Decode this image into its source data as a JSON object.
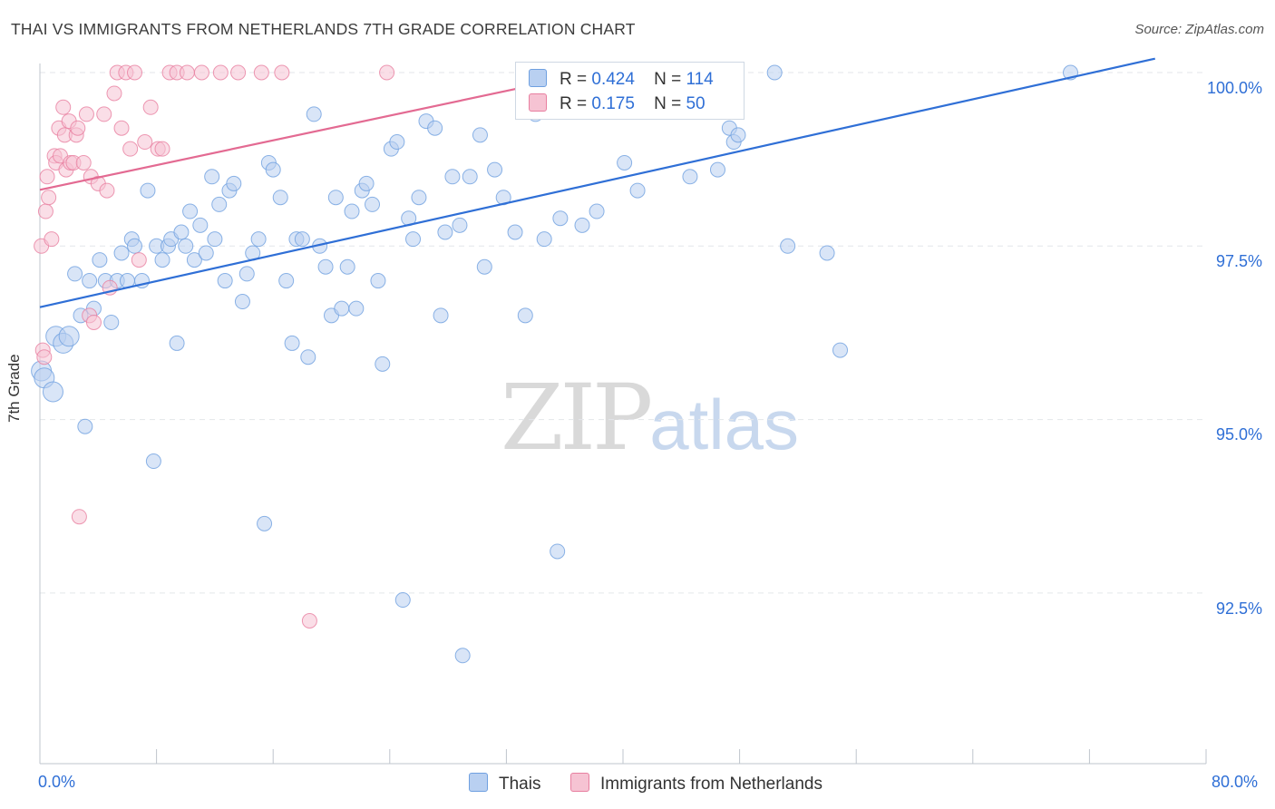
{
  "title": "THAI VS IMMIGRANTS FROM NETHERLANDS 7TH GRADE CORRELATION CHART",
  "source": "Source: ZipAtlas.com",
  "watermark": {
    "zip": "ZIP",
    "atlas": "atlas"
  },
  "legend_top": [
    {
      "r_label": "R =",
      "r_value": "0.424",
      "n_label": "N =",
      "n_value": "114"
    },
    {
      "r_label": "R =",
      "r_value": "0.175",
      "n_label": "N =",
      "n_value": "50"
    }
  ],
  "colors": {
    "thais": "#6fa0e0",
    "thais_fill": "#b9d0f1",
    "netherlands": "#e87fa0",
    "netherlands_fill": "#f6c3d3",
    "blue_line": "#2f6fd6",
    "pink_line": "#e36a92",
    "grid": "#e3e6ea",
    "axis_text": "#2f6fd6"
  },
  "chart_data": {
    "type": "scatter",
    "title": "THAI VS IMMIGRANTS FROM NETHERLANDS 7TH GRADE CORRELATION CHART",
    "xlabel": "",
    "ylabel": "7th Grade",
    "xlim": [
      0,
      80
    ],
    "ylim": [
      90.0,
      100.4
    ],
    "x_tick_labels": [
      "0.0%",
      "80.0%"
    ],
    "y_tick_labels": [
      "100.0%",
      "97.5%",
      "95.0%",
      "92.5%"
    ],
    "y_ticks": [
      100.0,
      97.5,
      95.0,
      92.5
    ],
    "grid": true,
    "legend_position": "bottom-center",
    "series": [
      {
        "name": "Thais",
        "r": 0.424,
        "n": 114,
        "trend": {
          "x": [
            0,
            76.5
          ],
          "y": [
            96.62,
            100.2
          ]
        },
        "points": [
          [
            0.1,
            95.7
          ],
          [
            0.3,
            95.6
          ],
          [
            0.9,
            95.4
          ],
          [
            1.1,
            96.2
          ],
          [
            1.6,
            96.1
          ],
          [
            2.0,
            96.2
          ],
          [
            2.4,
            97.1
          ],
          [
            2.8,
            96.5
          ],
          [
            3.1,
            94.9
          ],
          [
            3.4,
            97.0
          ],
          [
            3.7,
            96.6
          ],
          [
            4.1,
            97.3
          ],
          [
            4.5,
            97.0
          ],
          [
            4.9,
            96.4
          ],
          [
            5.3,
            97.0
          ],
          [
            5.6,
            97.4
          ],
          [
            6.0,
            97.0
          ],
          [
            6.3,
            97.6
          ],
          [
            6.5,
            97.5
          ],
          [
            7.0,
            97.0
          ],
          [
            7.4,
            98.3
          ],
          [
            7.8,
            94.4
          ],
          [
            8.0,
            97.5
          ],
          [
            8.4,
            97.3
          ],
          [
            8.8,
            97.5
          ],
          [
            9.0,
            97.6
          ],
          [
            9.4,
            96.1
          ],
          [
            9.7,
            97.7
          ],
          [
            10.0,
            97.5
          ],
          [
            10.3,
            98.0
          ],
          [
            10.6,
            97.3
          ],
          [
            11.0,
            97.8
          ],
          [
            11.4,
            97.4
          ],
          [
            11.8,
            98.5
          ],
          [
            12.0,
            97.6
          ],
          [
            12.3,
            98.1
          ],
          [
            12.7,
            97.0
          ],
          [
            13.0,
            98.3
          ],
          [
            13.3,
            98.4
          ],
          [
            13.9,
            96.7
          ],
          [
            14.2,
            97.1
          ],
          [
            14.6,
            97.4
          ],
          [
            15.0,
            97.6
          ],
          [
            15.4,
            93.5
          ],
          [
            15.7,
            98.7
          ],
          [
            16.0,
            98.6
          ],
          [
            16.5,
            98.2
          ],
          [
            16.9,
            97.0
          ],
          [
            17.3,
            96.1
          ],
          [
            17.6,
            97.6
          ],
          [
            18.0,
            97.6
          ],
          [
            18.4,
            95.9
          ],
          [
            18.8,
            99.4
          ],
          [
            19.2,
            97.5
          ],
          [
            19.6,
            97.2
          ],
          [
            20.0,
            96.5
          ],
          [
            20.3,
            98.2
          ],
          [
            20.7,
            96.6
          ],
          [
            21.1,
            97.2
          ],
          [
            21.4,
            98.0
          ],
          [
            21.7,
            96.6
          ],
          [
            22.1,
            98.3
          ],
          [
            22.4,
            98.4
          ],
          [
            22.8,
            98.1
          ],
          [
            23.2,
            97.0
          ],
          [
            23.5,
            95.8
          ],
          [
            24.1,
            98.9
          ],
          [
            24.5,
            99.0
          ],
          [
            24.9,
            92.4
          ],
          [
            25.3,
            97.9
          ],
          [
            25.6,
            97.6
          ],
          [
            26.0,
            98.2
          ],
          [
            26.5,
            99.3
          ],
          [
            27.1,
            99.2
          ],
          [
            27.5,
            96.5
          ],
          [
            27.8,
            97.7
          ],
          [
            28.3,
            98.5
          ],
          [
            28.8,
            97.8
          ],
          [
            29.5,
            98.5
          ],
          [
            29.0,
            91.6
          ],
          [
            30.2,
            99.1
          ],
          [
            30.5,
            97.2
          ],
          [
            31.2,
            98.6
          ],
          [
            31.8,
            98.2
          ],
          [
            32.6,
            97.7
          ],
          [
            33.3,
            96.5
          ],
          [
            34.0,
            99.4
          ],
          [
            34.6,
            97.6
          ],
          [
            35.0,
            100.0
          ],
          [
            35.5,
            93.1
          ],
          [
            35.7,
            97.9
          ],
          [
            36.3,
            99.6
          ],
          [
            37.2,
            97.8
          ],
          [
            37.8,
            99.8
          ],
          [
            38.2,
            98.0
          ],
          [
            38.9,
            99.8
          ],
          [
            39.6,
            100.0
          ],
          [
            40.1,
            98.7
          ],
          [
            41.0,
            98.3
          ],
          [
            41.6,
            100.0
          ],
          [
            42.3,
            100.0
          ],
          [
            44.6,
            98.5
          ],
          [
            46.5,
            98.6
          ],
          [
            47.3,
            99.2
          ],
          [
            47.6,
            99.0
          ],
          [
            47.9,
            99.1
          ],
          [
            50.4,
            100.0
          ],
          [
            51.3,
            97.5
          ],
          [
            54.0,
            97.4
          ],
          [
            54.9,
            96.0
          ],
          [
            70.7,
            100.0
          ]
        ]
      },
      {
        "name": "Immigrants from Netherlands",
        "r": 0.175,
        "n": 50,
        "trend": {
          "x": [
            0,
            33.0
          ],
          "y": [
            98.31,
            99.78
          ]
        },
        "points": [
          [
            0.1,
            97.5
          ],
          [
            0.2,
            96.0
          ],
          [
            0.3,
            95.9
          ],
          [
            0.4,
            98.0
          ],
          [
            0.5,
            98.5
          ],
          [
            0.6,
            98.2
          ],
          [
            0.8,
            97.6
          ],
          [
            1.0,
            98.8
          ],
          [
            1.1,
            98.7
          ],
          [
            1.3,
            99.2
          ],
          [
            1.4,
            98.8
          ],
          [
            1.6,
            99.5
          ],
          [
            1.7,
            99.1
          ],
          [
            1.8,
            98.6
          ],
          [
            2.0,
            99.3
          ],
          [
            2.1,
            98.7
          ],
          [
            2.3,
            98.7
          ],
          [
            2.5,
            99.1
          ],
          [
            2.6,
            99.2
          ],
          [
            2.7,
            93.6
          ],
          [
            3.0,
            98.7
          ],
          [
            3.2,
            99.4
          ],
          [
            3.4,
            96.5
          ],
          [
            3.5,
            98.5
          ],
          [
            3.7,
            96.4
          ],
          [
            4.0,
            98.4
          ],
          [
            4.4,
            99.4
          ],
          [
            4.6,
            98.3
          ],
          [
            4.8,
            96.9
          ],
          [
            5.1,
            99.7
          ],
          [
            5.3,
            100.0
          ],
          [
            5.6,
            99.2
          ],
          [
            5.9,
            100.0
          ],
          [
            6.2,
            98.9
          ],
          [
            6.5,
            100.0
          ],
          [
            6.8,
            97.3
          ],
          [
            7.2,
            99.0
          ],
          [
            7.6,
            99.5
          ],
          [
            8.1,
            98.9
          ],
          [
            8.4,
            98.9
          ],
          [
            8.9,
            100.0
          ],
          [
            9.4,
            100.0
          ],
          [
            10.1,
            100.0
          ],
          [
            11.1,
            100.0
          ],
          [
            12.4,
            100.0
          ],
          [
            13.6,
            100.0
          ],
          [
            15.2,
            100.0
          ],
          [
            16.6,
            100.0
          ],
          [
            18.5,
            92.1
          ],
          [
            23.8,
            100.0
          ]
        ]
      }
    ]
  },
  "legend_bottom": [
    {
      "label": "Thais"
    },
    {
      "label": "Immigrants from Netherlands"
    }
  ]
}
